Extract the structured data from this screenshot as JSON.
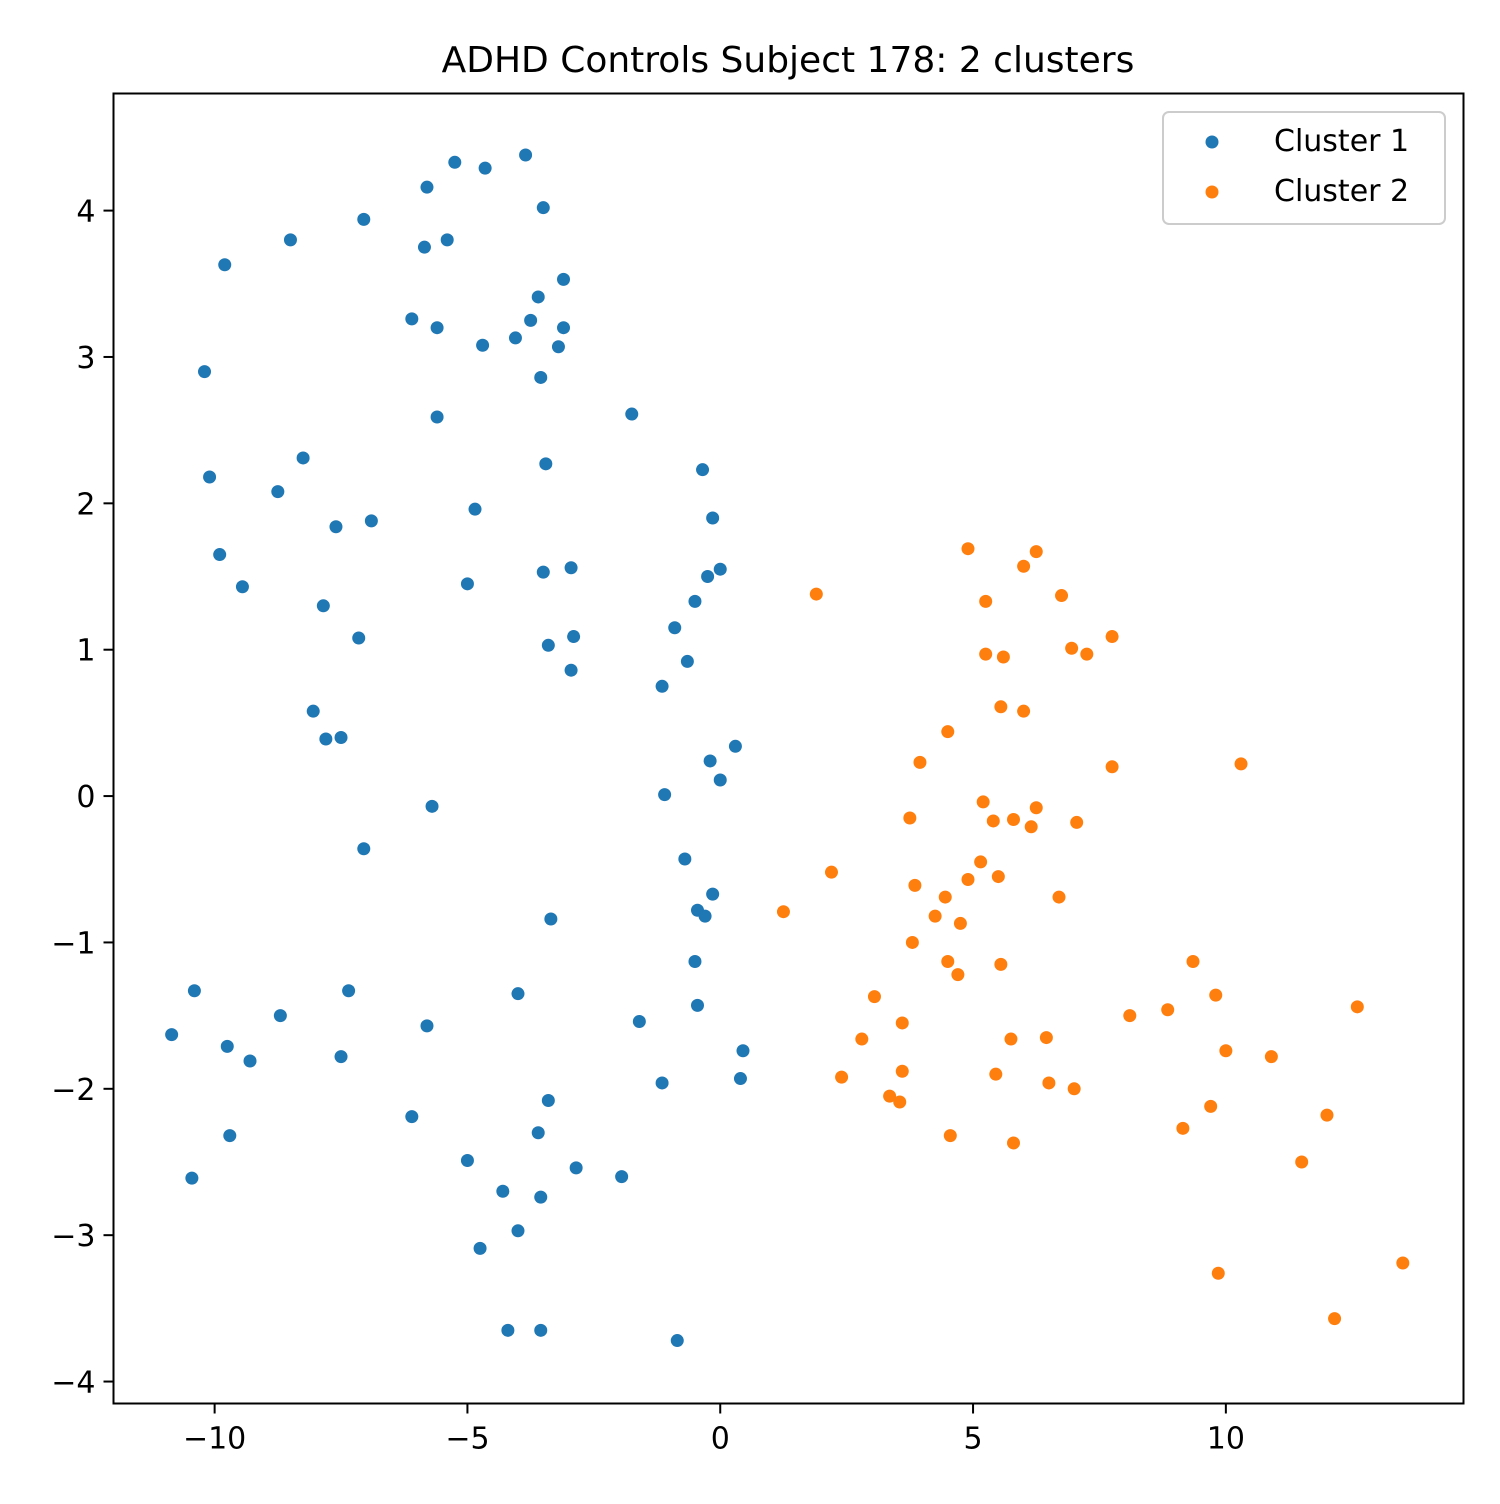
{
  "chart_data": {
    "type": "scatter",
    "title": "ADHD Controls Subject 178: 2 clusters",
    "xlabel": "",
    "ylabel": "",
    "xlim": [
      -12.0,
      14.7
    ],
    "ylim": [
      -4.15,
      4.8
    ],
    "x_ticks": [
      -10,
      -5,
      0,
      5,
      10
    ],
    "y_ticks": [
      -4,
      -3,
      -2,
      -1,
      0,
      1,
      2,
      3,
      4
    ],
    "x_tick_labels": [
      "−10",
      "−5",
      "0",
      "5",
      "10"
    ],
    "y_tick_labels": [
      "−4",
      "−3",
      "−2",
      "−1",
      "0",
      "1",
      "2",
      "3",
      "4"
    ],
    "grid": false,
    "legend_position": "top-right",
    "series": [
      {
        "name": "Cluster 1",
        "color": "#1f77b4",
        "points": [
          [
            -5.25,
            4.33
          ],
          [
            -4.65,
            4.29
          ],
          [
            -3.85,
            4.38
          ],
          [
            -5.8,
            4.16
          ],
          [
            -3.5,
            4.02
          ],
          [
            -7.05,
            3.94
          ],
          [
            -8.5,
            3.8
          ],
          [
            -5.4,
            3.8
          ],
          [
            -5.85,
            3.75
          ],
          [
            -9.8,
            3.63
          ],
          [
            -3.1,
            3.53
          ],
          [
            -3.6,
            3.41
          ],
          [
            -6.1,
            3.26
          ],
          [
            -3.75,
            3.25
          ],
          [
            -5.6,
            3.2
          ],
          [
            -3.1,
            3.2
          ],
          [
            -4.05,
            3.13
          ],
          [
            -4.7,
            3.08
          ],
          [
            -3.2,
            3.07
          ],
          [
            -10.2,
            2.9
          ],
          [
            -3.55,
            2.86
          ],
          [
            -1.75,
            2.61
          ],
          [
            -5.6,
            2.59
          ],
          [
            -8.25,
            2.31
          ],
          [
            -3.45,
            2.27
          ],
          [
            -0.35,
            2.23
          ],
          [
            -10.1,
            2.18
          ],
          [
            -8.75,
            2.08
          ],
          [
            -4.85,
            1.96
          ],
          [
            -0.15,
            1.9
          ],
          [
            -6.9,
            1.88
          ],
          [
            -7.6,
            1.84
          ],
          [
            -9.9,
            1.65
          ],
          [
            -2.95,
            1.56
          ],
          [
            -0.0,
            1.55
          ],
          [
            -3.5,
            1.53
          ],
          [
            -0.25,
            1.5
          ],
          [
            -5.0,
            1.45
          ],
          [
            -9.45,
            1.43
          ],
          [
            -0.5,
            1.33
          ],
          [
            -7.85,
            1.3
          ],
          [
            -0.9,
            1.15
          ],
          [
            -2.9,
            1.09
          ],
          [
            -7.15,
            1.08
          ],
          [
            -3.4,
            1.03
          ],
          [
            -0.65,
            0.92
          ],
          [
            -2.95,
            0.86
          ],
          [
            -1.15,
            0.75
          ],
          [
            -8.05,
            0.58
          ],
          [
            -7.5,
            0.4
          ],
          [
            -7.8,
            0.39
          ],
          [
            0.3,
            0.34
          ],
          [
            -0.2,
            0.24
          ],
          [
            0.0,
            0.11
          ],
          [
            -1.1,
            0.01
          ],
          [
            -5.7,
            -0.07
          ],
          [
            -7.05,
            -0.36
          ],
          [
            -0.7,
            -0.43
          ],
          [
            -0.15,
            -0.67
          ],
          [
            -0.45,
            -0.78
          ],
          [
            -0.3,
            -0.82
          ],
          [
            -3.35,
            -0.84
          ],
          [
            -0.5,
            -1.13
          ],
          [
            -10.4,
            -1.33
          ],
          [
            -7.35,
            -1.33
          ],
          [
            -4.0,
            -1.35
          ],
          [
            -0.45,
            -1.43
          ],
          [
            -8.7,
            -1.5
          ],
          [
            -1.6,
            -1.54
          ],
          [
            -5.8,
            -1.57
          ],
          [
            -10.85,
            -1.63
          ],
          [
            -9.75,
            -1.71
          ],
          [
            0.45,
            -1.74
          ],
          [
            -7.5,
            -1.78
          ],
          [
            -9.3,
            -1.81
          ],
          [
            0.4,
            -1.93
          ],
          [
            -1.15,
            -1.96
          ],
          [
            -3.4,
            -2.08
          ],
          [
            -6.1,
            -2.19
          ],
          [
            -3.6,
            -2.3
          ],
          [
            -9.7,
            -2.32
          ],
          [
            -5.0,
            -2.49
          ],
          [
            -2.85,
            -2.54
          ],
          [
            -1.95,
            -2.6
          ],
          [
            -10.45,
            -2.61
          ],
          [
            -4.3,
            -2.7
          ],
          [
            -3.55,
            -2.74
          ],
          [
            -4.0,
            -2.97
          ],
          [
            -4.75,
            -3.09
          ],
          [
            -4.2,
            -3.65
          ],
          [
            -3.55,
            -3.65
          ],
          [
            -0.85,
            -3.72
          ]
        ]
      },
      {
        "name": "Cluster 2",
        "color": "#ff7f0e",
        "points": [
          [
            4.9,
            1.69
          ],
          [
            6.25,
            1.67
          ],
          [
            6.0,
            1.57
          ],
          [
            1.9,
            1.38
          ],
          [
            6.75,
            1.37
          ],
          [
            5.25,
            1.33
          ],
          [
            7.75,
            1.09
          ],
          [
            6.95,
            1.01
          ],
          [
            7.25,
            0.97
          ],
          [
            5.25,
            0.97
          ],
          [
            5.6,
            0.95
          ],
          [
            5.55,
            0.61
          ],
          [
            6.0,
            0.58
          ],
          [
            4.5,
            0.44
          ],
          [
            3.95,
            0.23
          ],
          [
            10.3,
            0.22
          ],
          [
            7.75,
            0.2
          ],
          [
            5.2,
            -0.04
          ],
          [
            6.25,
            -0.08
          ],
          [
            3.75,
            -0.15
          ],
          [
            5.4,
            -0.17
          ],
          [
            5.8,
            -0.16
          ],
          [
            7.05,
            -0.18
          ],
          [
            6.15,
            -0.21
          ],
          [
            5.15,
            -0.45
          ],
          [
            2.2,
            -0.52
          ],
          [
            5.5,
            -0.55
          ],
          [
            4.9,
            -0.57
          ],
          [
            3.85,
            -0.61
          ],
          [
            4.45,
            -0.69
          ],
          [
            6.7,
            -0.69
          ],
          [
            1.25,
            -0.79
          ],
          [
            4.25,
            -0.82
          ],
          [
            4.75,
            -0.87
          ],
          [
            3.8,
            -1.0
          ],
          [
            4.5,
            -1.13
          ],
          [
            9.35,
            -1.13
          ],
          [
            5.55,
            -1.15
          ],
          [
            4.7,
            -1.22
          ],
          [
            9.8,
            -1.36
          ],
          [
            3.05,
            -1.37
          ],
          [
            12.6,
            -1.44
          ],
          [
            8.85,
            -1.46
          ],
          [
            8.1,
            -1.5
          ],
          [
            3.6,
            -1.55
          ],
          [
            2.8,
            -1.66
          ],
          [
            6.45,
            -1.65
          ],
          [
            5.75,
            -1.66
          ],
          [
            10.0,
            -1.74
          ],
          [
            10.9,
            -1.78
          ],
          [
            3.6,
            -1.88
          ],
          [
            2.4,
            -1.92
          ],
          [
            5.45,
            -1.9
          ],
          [
            6.5,
            -1.96
          ],
          [
            7.0,
            -2.0
          ],
          [
            3.35,
            -2.05
          ],
          [
            3.55,
            -2.09
          ],
          [
            9.7,
            -2.12
          ],
          [
            12.0,
            -2.18
          ],
          [
            9.15,
            -2.27
          ],
          [
            4.55,
            -2.32
          ],
          [
            5.8,
            -2.37
          ],
          [
            11.5,
            -2.5
          ],
          [
            13.5,
            -3.19
          ],
          [
            9.85,
            -3.26
          ],
          [
            12.15,
            -3.57
          ]
        ]
      }
    ]
  }
}
